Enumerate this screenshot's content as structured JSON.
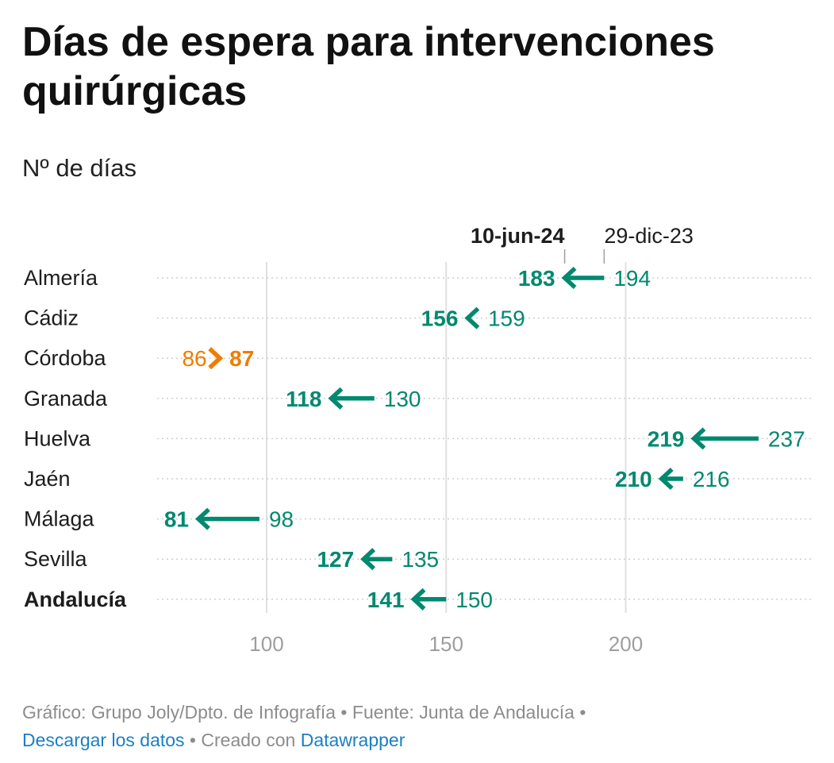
{
  "title": "Días de espera para intervenciones quirúrgicas",
  "subtitle": "Nº de días",
  "footer": {
    "credit": "Gráfico: Grupo Joly/Dpto. de Infografía",
    "sep1": " • ",
    "source": "Fuente: Junta de Andalucía",
    "sep2": " • ",
    "download": "Descargar los datos",
    "sep3": " • ",
    "created": "Creado con ",
    "tool": "Datawrapper"
  },
  "chart_data": {
    "type": "arrow",
    "series": [
      {
        "name": "10-jun-24",
        "field": "to"
      },
      {
        "name": "29-dic-23",
        "field": "from"
      }
    ],
    "xticks": [
      100,
      150,
      200
    ],
    "xlim": [
      70,
      250
    ],
    "grid": true,
    "rows": [
      {
        "label": "Almería",
        "from": 194,
        "to": 183,
        "bold": false
      },
      {
        "label": "Cádiz",
        "from": 159,
        "to": 156,
        "bold": false
      },
      {
        "label": "Córdoba",
        "from": 86,
        "to": 87,
        "bold": false
      },
      {
        "label": "Granada",
        "from": 130,
        "to": 118,
        "bold": false
      },
      {
        "label": "Huelva",
        "from": 237,
        "to": 219,
        "bold": false
      },
      {
        "label": "Jaén",
        "from": 216,
        "to": 210,
        "bold": false
      },
      {
        "label": "Málaga",
        "from": 98,
        "to": 81,
        "bold": false
      },
      {
        "label": "Sevilla",
        "from": 135,
        "to": 127,
        "bold": false
      },
      {
        "label": "Andalucía",
        "from": 150,
        "to": 141,
        "bold": true
      }
    ],
    "colors": {
      "decrease": "#00896f",
      "increase": "#ef7d00"
    }
  }
}
